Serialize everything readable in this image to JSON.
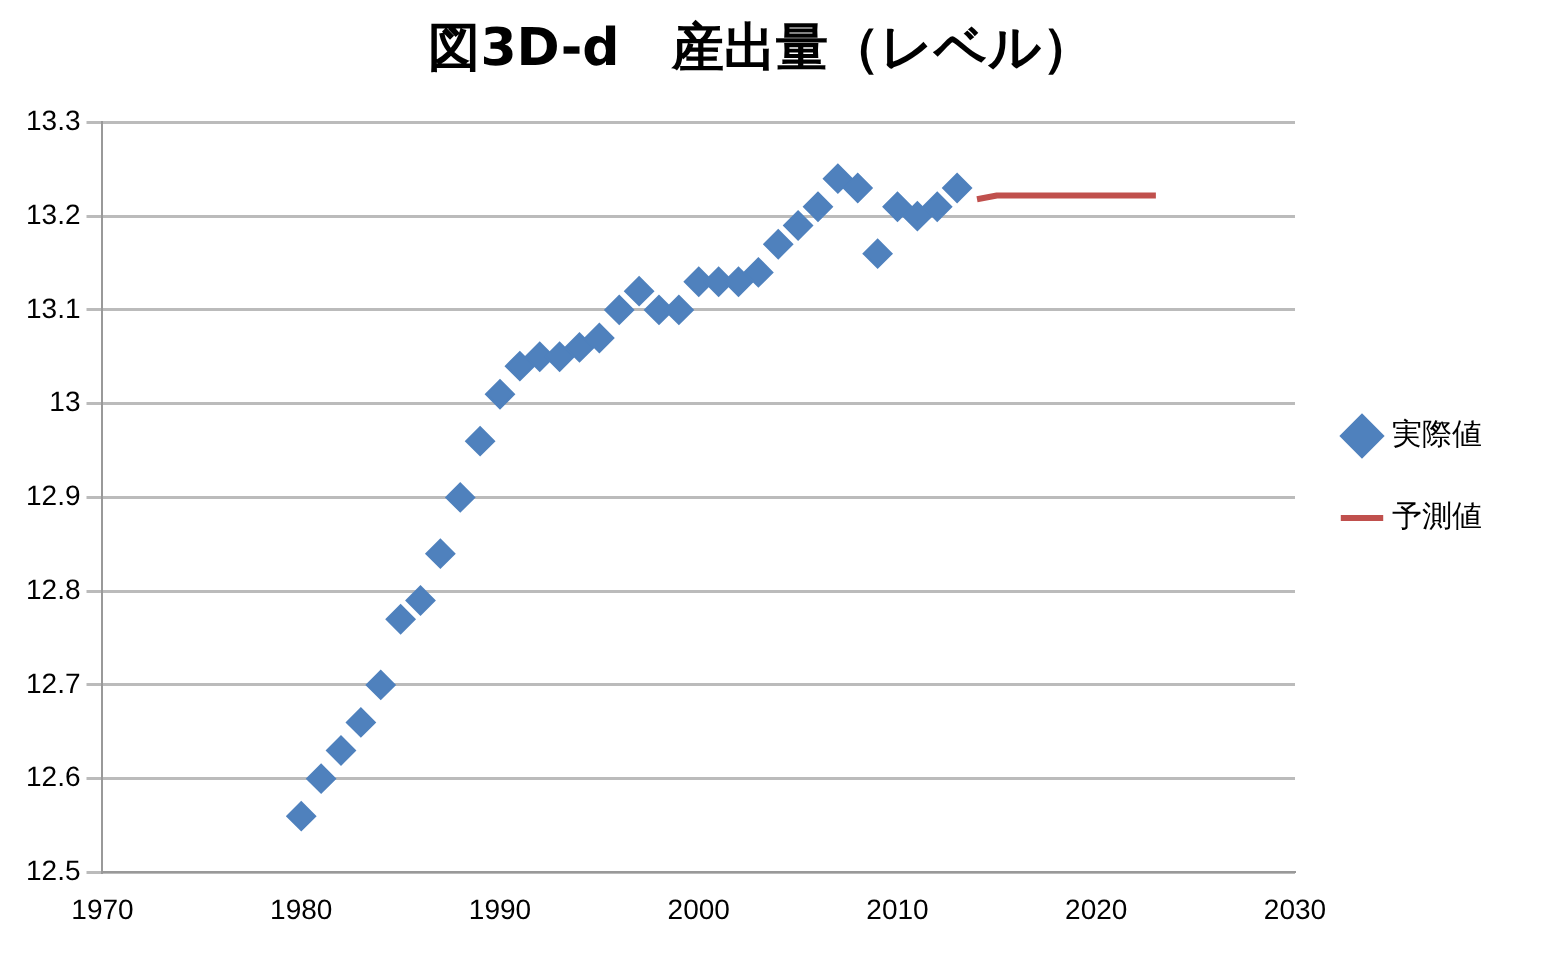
{
  "chart_data": {
    "type": "scatter",
    "title": "図3D-d　産出量（レベル）",
    "series": [
      {
        "name": "実際値",
        "type": "scatter",
        "color": "#4f81bd",
        "marker": "diamond",
        "x": [
          1980,
          1981,
          1982,
          1983,
          1984,
          1985,
          1986,
          1987,
          1988,
          1989,
          1990,
          1991,
          1992,
          1993,
          1994,
          1995,
          1996,
          1997,
          1998,
          1999,
          2000,
          2001,
          2002,
          2003,
          2004,
          2005,
          2006,
          2007,
          2008,
          2009,
          2010,
          2011,
          2012,
          2013
        ],
        "values": [
          12.56,
          12.6,
          12.63,
          12.66,
          12.7,
          12.77,
          12.79,
          12.84,
          12.9,
          12.96,
          13.01,
          13.04,
          13.05,
          13.05,
          13.06,
          13.07,
          13.1,
          13.12,
          13.1,
          13.1,
          13.13,
          13.13,
          13.13,
          13.14,
          13.17,
          13.19,
          13.21,
          13.24,
          13.23,
          13.16,
          13.21,
          13.2,
          13.21,
          13.23
        ]
      },
      {
        "name": "予測値",
        "type": "line",
        "color": "#c0504d",
        "marker": "none",
        "x": [
          2014,
          2015,
          2016,
          2017,
          2018,
          2019,
          2020,
          2021,
          2022,
          2023
        ],
        "values": [
          13.218,
          13.222,
          13.222,
          13.222,
          13.222,
          13.222,
          13.222,
          13.222,
          13.222,
          13.222
        ]
      }
    ],
    "xlim": [
      1970,
      2030
    ],
    "xticks": [
      1970,
      1980,
      1990,
      2000,
      2010,
      2020,
      2030
    ],
    "ylim": [
      12.5,
      13.3
    ],
    "yticks": [
      12.5,
      12.6,
      12.7,
      12.8,
      12.9,
      13,
      13.1,
      13.2,
      13.3
    ],
    "grid": "y",
    "legend": "right"
  }
}
